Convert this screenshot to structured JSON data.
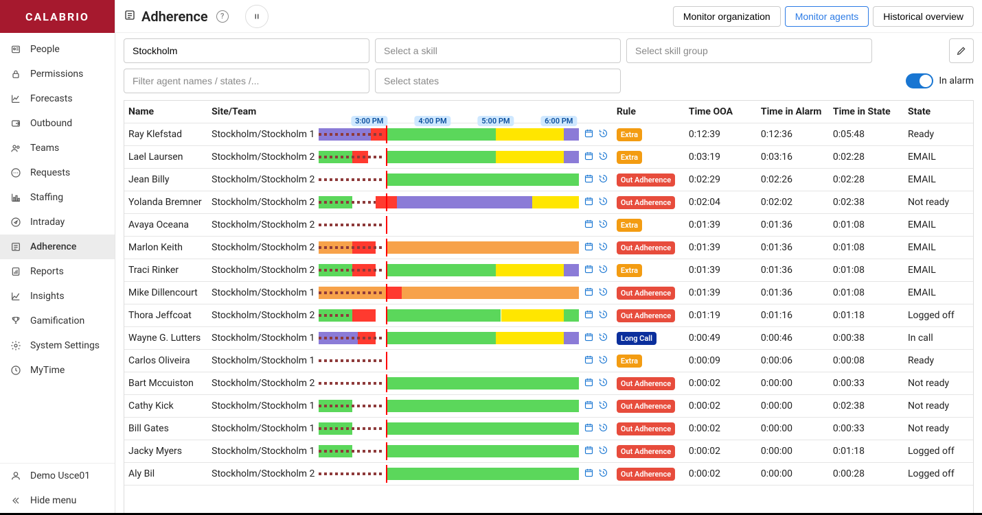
{
  "brand": "CALABRIO",
  "page": {
    "title": "Adherence"
  },
  "sidebar": {
    "items": [
      {
        "label": "People",
        "icon": "people"
      },
      {
        "label": "Permissions",
        "icon": "lock"
      },
      {
        "label": "Forecasts",
        "icon": "linechart"
      },
      {
        "label": "Outbound",
        "icon": "outbound"
      },
      {
        "label": "Teams",
        "icon": "teams"
      },
      {
        "label": "Requests",
        "icon": "chat"
      },
      {
        "label": "Staffing",
        "icon": "barchart"
      },
      {
        "label": "Intraday",
        "icon": "compass"
      },
      {
        "label": "Adherence",
        "icon": "adherence",
        "active": true
      },
      {
        "label": "Reports",
        "icon": "report"
      },
      {
        "label": "Insights",
        "icon": "insights"
      },
      {
        "label": "Gamification",
        "icon": "trophy"
      },
      {
        "label": "System Settings",
        "icon": "gear"
      },
      {
        "label": "MyTime",
        "icon": "clock"
      }
    ],
    "footer": {
      "user": "Demo Usce01",
      "hide_menu": "Hide menu"
    }
  },
  "header_tabs": [
    {
      "label": "Monitor organization"
    },
    {
      "label": "Monitor agents",
      "active": true
    },
    {
      "label": "Historical overview"
    }
  ],
  "filters": {
    "site_value": "Stockholm",
    "skill_placeholder": "Select a skill",
    "skill_group_placeholder": "Select skill group",
    "agent_filter_placeholder": "Filter agent names / states /...",
    "states_placeholder": "Select states",
    "in_alarm_label": "In alarm",
    "in_alarm_on": true
  },
  "columns": {
    "name": "Name",
    "team": "Site/Team",
    "rule": "Rule",
    "ooa": "Time OOA",
    "alarm": "Time in Alarm",
    "state_time": "Time in State",
    "state": "State"
  },
  "timeline": {
    "start_pct": 0,
    "ticks": [
      {
        "label": "3:00 PM",
        "pct": 19.5
      },
      {
        "label": "4:00 PM",
        "pct": 43.8
      },
      {
        "label": "5:00 PM",
        "pct": 68.0
      },
      {
        "label": "6:00 PM",
        "pct": 92.2
      }
    ],
    "nowline_pct": 26.0
  },
  "colors": {
    "green": "#5bd75b",
    "yellow": "#ffe600",
    "purple": "#8b7bd7",
    "red": "#ff3a2f",
    "orange": "#f7a24a",
    "darkred_dash": "#8e3a3a",
    "badge_extra": "#f39c12",
    "badge_out": "#e74c3c",
    "badge_long": "#0b2f9c"
  },
  "rule_labels": {
    "extra": "Extra",
    "out": "Out Adherence",
    "long": "Long Call"
  },
  "agents": [
    {
      "name": "Ray Klefstad",
      "team": "Stockholm/Stockholm 1",
      "rule": "extra",
      "ooa": "0:12:39",
      "alarm": "0:12:36",
      "state_time": "0:05:48",
      "state": "Ready",
      "segments": [
        {
          "start": 0,
          "end": 20,
          "color": "purple"
        },
        {
          "start": 20,
          "end": 26,
          "color": "red"
        },
        {
          "start": 26,
          "end": 68,
          "color": "green"
        },
        {
          "start": 68,
          "end": 94,
          "color": "yellow"
        },
        {
          "start": 94,
          "end": 100,
          "color": "purple"
        }
      ],
      "dashes": [
        {
          "start": 0,
          "end": 25
        }
      ]
    },
    {
      "name": "Lael Laursen",
      "team": "Stockholm/Stockholm 2",
      "rule": "extra",
      "ooa": "0:03:19",
      "alarm": "0:03:16",
      "state_time": "0:02:28",
      "state": "EMAIL",
      "segments": [
        {
          "start": 0,
          "end": 13,
          "color": "green"
        },
        {
          "start": 13,
          "end": 19,
          "color": "red"
        },
        {
          "start": 26,
          "end": 68,
          "color": "green"
        },
        {
          "start": 68,
          "end": 94,
          "color": "yellow"
        },
        {
          "start": 94,
          "end": 100,
          "color": "purple"
        }
      ],
      "dashes": [
        {
          "start": 0,
          "end": 25
        }
      ]
    },
    {
      "name": "Jean Billy",
      "team": "Stockholm/Stockholm 2",
      "rule": "out",
      "ooa": "0:02:29",
      "alarm": "0:02:26",
      "state_time": "0:02:28",
      "state": "EMAIL",
      "segments": [
        {
          "start": 26,
          "end": 100,
          "color": "green"
        }
      ],
      "dashes": [
        {
          "start": 0,
          "end": 25
        }
      ]
    },
    {
      "name": "Yolanda Bremner",
      "team": "Stockholm/Stockholm 2",
      "rule": "out",
      "ooa": "0:02:04",
      "alarm": "0:02:02",
      "state_time": "0:02:38",
      "state": "Not ready",
      "segments": [
        {
          "start": 0,
          "end": 13,
          "color": "green"
        },
        {
          "start": 22,
          "end": 30,
          "color": "red"
        },
        {
          "start": 30,
          "end": 82,
          "color": "purple"
        },
        {
          "start": 82,
          "end": 100,
          "color": "yellow"
        }
      ],
      "dashes": [
        {
          "start": 0,
          "end": 22
        }
      ]
    },
    {
      "name": "Avaya Oceana",
      "team": "Stockholm/Stockholm 2",
      "rule": "extra",
      "ooa": "0:01:39",
      "alarm": "0:01:36",
      "state_time": "0:01:08",
      "state": "EMAIL",
      "segments": [],
      "dashes": [
        {
          "start": 0,
          "end": 25
        }
      ]
    },
    {
      "name": "Marlon Keith",
      "team": "Stockholm/Stockholm 2",
      "rule": "out",
      "ooa": "0:01:39",
      "alarm": "0:01:36",
      "state_time": "0:01:08",
      "state": "EMAIL",
      "segments": [
        {
          "start": 0,
          "end": 13,
          "color": "orange"
        },
        {
          "start": 13,
          "end": 22,
          "color": "red"
        },
        {
          "start": 26,
          "end": 100,
          "color": "orange"
        }
      ],
      "dashes": [
        {
          "start": 0,
          "end": 25
        }
      ]
    },
    {
      "name": "Traci Rinker",
      "team": "Stockholm/Stockholm 2",
      "rule": "extra",
      "ooa": "0:01:39",
      "alarm": "0:01:36",
      "state_time": "0:01:08",
      "state": "EMAIL",
      "segments": [
        {
          "start": 0,
          "end": 13,
          "color": "green"
        },
        {
          "start": 13,
          "end": 22,
          "color": "red"
        },
        {
          "start": 26,
          "end": 68,
          "color": "green"
        },
        {
          "start": 68,
          "end": 94,
          "color": "yellow"
        },
        {
          "start": 94,
          "end": 100,
          "color": "purple"
        }
      ],
      "dashes": [
        {
          "start": 0,
          "end": 25
        }
      ]
    },
    {
      "name": "Mike Dillencourt",
      "team": "Stockholm/Stockholm 1",
      "rule": "out",
      "ooa": "0:01:39",
      "alarm": "0:01:36",
      "state_time": "0:01:08",
      "state": "EMAIL",
      "segments": [
        {
          "start": 0,
          "end": 26,
          "color": "orange"
        },
        {
          "start": 26,
          "end": 32,
          "color": "red"
        },
        {
          "start": 32,
          "end": 100,
          "color": "orange"
        }
      ],
      "dashes": [
        {
          "start": 0,
          "end": 25
        }
      ]
    },
    {
      "name": "Thora Jeffcoat",
      "team": "Stockholm/Stockholm 2",
      "rule": "out",
      "ooa": "0:01:19",
      "alarm": "0:01:16",
      "state_time": "0:01:18",
      "state": "Logged off",
      "segments": [
        {
          "start": 0,
          "end": 13,
          "color": "green"
        },
        {
          "start": 13,
          "end": 22,
          "color": "red"
        },
        {
          "start": 26,
          "end": 70,
          "color": "green"
        },
        {
          "start": 70,
          "end": 94,
          "color": "yellow"
        },
        {
          "start": 94,
          "end": 100,
          "color": "green"
        }
      ],
      "dashes": [
        {
          "start": 0,
          "end": 12
        }
      ]
    },
    {
      "name": "Wayne G. Lutters",
      "team": "Stockholm/Stockholm 1",
      "rule": "long",
      "ooa": "0:00:49",
      "alarm": "0:00:46",
      "state_time": "0:00:38",
      "state": "In call",
      "segments": [
        {
          "start": 0,
          "end": 15,
          "color": "purple"
        },
        {
          "start": 15,
          "end": 22,
          "color": "red"
        },
        {
          "start": 26,
          "end": 68,
          "color": "green"
        },
        {
          "start": 68,
          "end": 94,
          "color": "yellow"
        },
        {
          "start": 94,
          "end": 100,
          "color": "purple"
        }
      ],
      "dashes": [
        {
          "start": 0,
          "end": 25
        }
      ]
    },
    {
      "name": "Carlos Oliveira",
      "team": "Stockholm/Stockholm 1",
      "rule": "extra",
      "ooa": "0:00:09",
      "alarm": "0:00:06",
      "state_time": "0:00:08",
      "state": "Ready",
      "segments": [],
      "dashes": [
        {
          "start": 0,
          "end": 25
        }
      ]
    },
    {
      "name": "Bart Mccuiston",
      "team": "Stockholm/Stockholm 2",
      "rule": "out",
      "ooa": "0:00:02",
      "alarm": "0:00:00",
      "state_time": "0:00:33",
      "state": "Not ready",
      "segments": [
        {
          "start": 26,
          "end": 100,
          "color": "green"
        }
      ],
      "dashes": [
        {
          "start": 0,
          "end": 25
        }
      ]
    },
    {
      "name": "Cathy Kick",
      "team": "Stockholm/Stockholm 1",
      "rule": "out",
      "ooa": "0:00:02",
      "alarm": "0:00:00",
      "state_time": "0:02:38",
      "state": "Not ready",
      "segments": [
        {
          "start": 0,
          "end": 13,
          "color": "green"
        },
        {
          "start": 26,
          "end": 100,
          "color": "green"
        }
      ],
      "dashes": [
        {
          "start": 0,
          "end": 25
        }
      ]
    },
    {
      "name": "Bill Gates",
      "team": "Stockholm/Stockholm 1",
      "rule": "out",
      "ooa": "0:00:02",
      "alarm": "0:00:00",
      "state_time": "0:00:33",
      "state": "Not ready",
      "segments": [
        {
          "start": 0,
          "end": 13,
          "color": "green"
        },
        {
          "start": 26,
          "end": 100,
          "color": "green"
        }
      ],
      "dashes": [
        {
          "start": 0,
          "end": 25
        }
      ]
    },
    {
      "name": "Jacky Myers",
      "team": "Stockholm/Stockholm 1",
      "rule": "out",
      "ooa": "0:00:02",
      "alarm": "0:00:00",
      "state_time": "0:01:18",
      "state": "Logged off",
      "segments": [
        {
          "start": 0,
          "end": 13,
          "color": "green"
        },
        {
          "start": 26,
          "end": 100,
          "color": "green"
        }
      ],
      "dashes": [
        {
          "start": 0,
          "end": 25
        }
      ]
    },
    {
      "name": "Aly Bil",
      "team": "Stockholm/Stockholm 2",
      "rule": "out",
      "ooa": "0:00:02",
      "alarm": "0:00:00",
      "state_time": "0:00:28",
      "state": "Logged off",
      "segments": [
        {
          "start": 26,
          "end": 100,
          "color": "green"
        }
      ],
      "dashes": [
        {
          "start": 0,
          "end": 25
        }
      ]
    }
  ]
}
